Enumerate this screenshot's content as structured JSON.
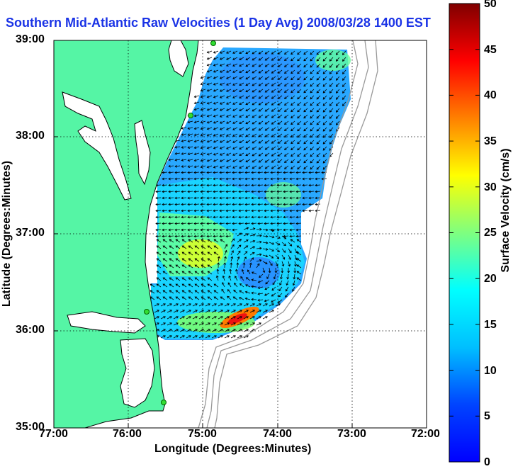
{
  "title": "Southern Mid-Atlantic Raw Velocities (1 Day Avg) 2008/03/28 1400 EST",
  "xlabel": "Longitude (Degrees:Minutes)",
  "ylabel": "Latitude (Degrees:Minutes)",
  "colorbar_label": "Surface Velocity (cm/s)",
  "x_ticks": [
    "77:00",
    "76:00",
    "75:00",
    "74:00",
    "73:00",
    "72:00"
  ],
  "y_ticks": [
    "39:00",
    "38:00",
    "37:00",
    "36:00",
    "35:00"
  ],
  "colorbar_ticks": [
    "0",
    "5",
    "10",
    "15",
    "20",
    "25",
    "30",
    "35",
    "40",
    "45",
    "50"
  ],
  "colors": {
    "land": "#55f5a5",
    "title": "#1a33e6",
    "site": "#33dd33",
    "bathymetry": "#999999"
  },
  "map": {
    "lon_range": [
      -77,
      -72
    ],
    "lat_range": [
      35,
      39
    ],
    "colormap": "jet",
    "grid": true
  }
}
